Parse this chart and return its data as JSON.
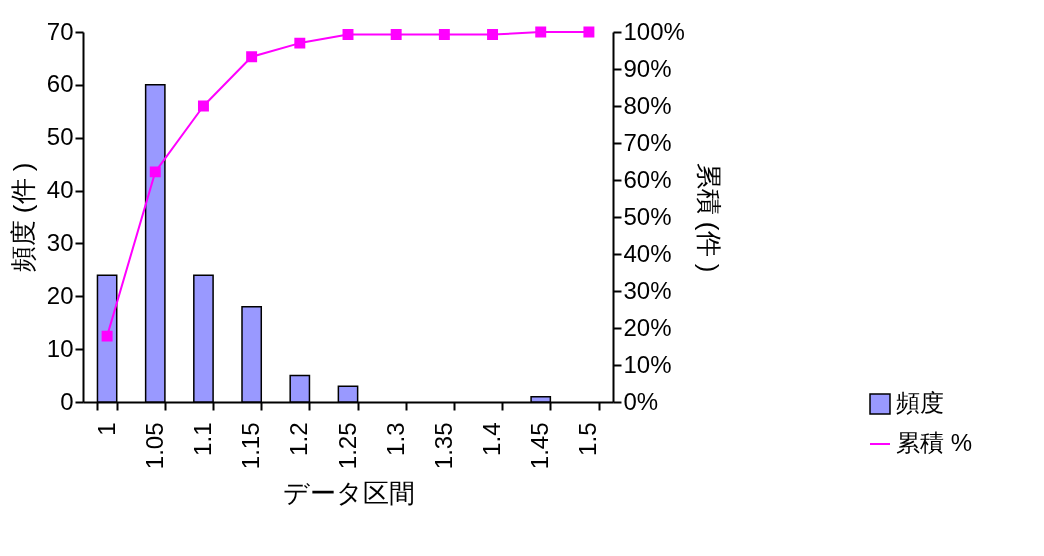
{
  "chart_data": {
    "type": "bar",
    "xlabel": "データ区間",
    "ylabel": "頻度 (件 )",
    "y2label": "累積 (件 )",
    "categories": [
      "1",
      "1.05",
      "1.1",
      "1.15",
      "1.2",
      "1.25",
      "1.3",
      "1.35",
      "1.4",
      "1.45",
      "1.5"
    ],
    "series": [
      {
        "name": "頻度",
        "type": "bar",
        "color": "#9999ff",
        "values": [
          24,
          60,
          24,
          18,
          5,
          3,
          0,
          0,
          0,
          1,
          0
        ]
      },
      {
        "name": "累積 %",
        "type": "line",
        "axis": "y2",
        "color": "#ff00ff",
        "marker": "square",
        "values": [
          17.8,
          62.2,
          80,
          93.3,
          97,
          99.3,
          99.3,
          99.3,
          99.3,
          100,
          100
        ]
      }
    ],
    "ylim": [
      0,
      70
    ],
    "yticks": [
      0,
      10,
      20,
      30,
      40,
      50,
      60,
      70
    ],
    "y2lim": [
      0,
      100
    ],
    "y2ticks": [
      {
        "value": 0,
        "label": "0%"
      },
      {
        "value": 10,
        "label": "10%"
      },
      {
        "value": 20,
        "label": "20%"
      },
      {
        "value": 30,
        "label": "30%"
      },
      {
        "value": 40,
        "label": "40%"
      },
      {
        "value": 50,
        "label": "50%"
      },
      {
        "value": 60,
        "label": "60%"
      },
      {
        "value": 70,
        "label": "70%"
      },
      {
        "value": 80,
        "label": "80%"
      },
      {
        "value": 90,
        "label": "90%"
      },
      {
        "value": 100,
        "label": "100%"
      }
    ],
    "legend": "bottom right"
  }
}
